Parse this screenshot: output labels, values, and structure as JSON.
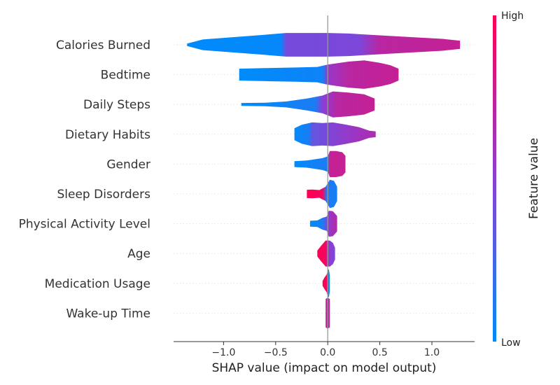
{
  "chart_data": {
    "type": "violin",
    "xlabel": "SHAP value (impact on model output)",
    "xlim": [
      -1.48,
      1.41
    ],
    "xticks": [
      -1.0,
      -0.5,
      0.0,
      0.5,
      1.0
    ],
    "xtick_labels": [
      "−1.0",
      "−0.5",
      "0.0",
      "0.5",
      "1.0"
    ],
    "grid": false,
    "colorbar": {
      "label": "Feature value",
      "high_label": "High",
      "low_label": "Low",
      "low_color": "#008bfb",
      "mid_color": "#8a3fd6",
      "high_color": "#ff0052"
    },
    "features": [
      {
        "name": "Calories Burned",
        "min": -1.35,
        "max": 1.27,
        "profile": [
          [
            -1.35,
            0.02
          ],
          [
            -1.2,
            0.09
          ],
          [
            -0.9,
            0.13
          ],
          [
            -0.6,
            0.17
          ],
          [
            -0.4,
            0.2
          ],
          [
            -0.2,
            0.2
          ],
          [
            0.0,
            0.2
          ],
          [
            0.2,
            0.19
          ],
          [
            0.5,
            0.16
          ],
          [
            0.8,
            0.13
          ],
          [
            1.1,
            0.1
          ],
          [
            1.27,
            0.07
          ]
        ],
        "color": [
          [
            -1.35,
            0.0
          ],
          [
            -0.45,
            0.02
          ],
          [
            -0.4,
            0.42
          ],
          [
            0.3,
            0.45
          ],
          [
            0.5,
            0.7
          ],
          [
            1.27,
            0.75
          ]
        ]
      },
      {
        "name": "Bedtime",
        "min": -0.85,
        "max": 0.68,
        "profile": [
          [
            -0.85,
            0.1
          ],
          [
            -0.6,
            0.11
          ],
          [
            -0.3,
            0.12
          ],
          [
            -0.1,
            0.13
          ],
          [
            0.0,
            0.17
          ],
          [
            0.2,
            0.22
          ],
          [
            0.35,
            0.24
          ],
          [
            0.5,
            0.2
          ],
          [
            0.6,
            0.16
          ],
          [
            0.68,
            0.1
          ]
        ],
        "color": [
          [
            -0.85,
            0.0
          ],
          [
            -0.05,
            0.05
          ],
          [
            0.0,
            0.55
          ],
          [
            0.2,
            0.7
          ],
          [
            0.68,
            0.75
          ]
        ]
      },
      {
        "name": "Daily Steps",
        "min": -0.83,
        "max": 0.45,
        "profile": [
          [
            -0.83,
            0.025
          ],
          [
            -0.6,
            0.03
          ],
          [
            -0.4,
            0.05
          ],
          [
            -0.2,
            0.1
          ],
          [
            -0.05,
            0.15
          ],
          [
            0.05,
            0.22
          ],
          [
            0.2,
            0.2
          ],
          [
            0.35,
            0.17
          ],
          [
            0.45,
            0.1
          ]
        ],
        "color": [
          [
            -0.83,
            0.0
          ],
          [
            -0.12,
            0.1
          ],
          [
            -0.05,
            0.5
          ],
          [
            0.1,
            0.7
          ],
          [
            0.45,
            0.75
          ]
        ]
      },
      {
        "name": "Dietary Habits",
        "min": -0.32,
        "max": 0.46,
        "profile": [
          [
            -0.32,
            0.1
          ],
          [
            -0.25,
            0.16
          ],
          [
            -0.15,
            0.2
          ],
          [
            -0.05,
            0.19
          ],
          [
            0.05,
            0.2
          ],
          [
            0.15,
            0.17
          ],
          [
            0.3,
            0.12
          ],
          [
            0.4,
            0.06
          ],
          [
            0.46,
            0.05
          ]
        ],
        "color": [
          [
            -0.32,
            0.0
          ],
          [
            -0.18,
            0.1
          ],
          [
            -0.15,
            0.35
          ],
          [
            0.0,
            0.45
          ],
          [
            0.2,
            0.55
          ],
          [
            0.46,
            0.65
          ]
        ]
      },
      {
        "name": "Gender",
        "min": -0.32,
        "max": 0.17,
        "profile": [
          [
            -0.32,
            0.05
          ],
          [
            -0.2,
            0.06
          ],
          [
            -0.05,
            0.1
          ],
          [
            0.0,
            0.13
          ],
          [
            0.02,
            0.22
          ],
          [
            0.08,
            0.22
          ],
          [
            0.14,
            0.2
          ],
          [
            0.17,
            0.14
          ]
        ],
        "color": [
          [
            -0.32,
            0.0
          ],
          [
            0.0,
            0.1
          ],
          [
            0.02,
            0.75
          ],
          [
            0.17,
            0.75
          ]
        ]
      },
      {
        "name": "Sleep Disorders",
        "min": -0.2,
        "max": 0.09,
        "profile": [
          [
            -0.2,
            0.07
          ],
          [
            -0.15,
            0.075
          ],
          [
            -0.08,
            0.065
          ],
          [
            -0.02,
            0.12
          ],
          [
            0.02,
            0.24
          ],
          [
            0.06,
            0.22
          ],
          [
            0.09,
            0.12
          ]
        ],
        "color": [
          [
            -0.2,
            1.0
          ],
          [
            -0.05,
            0.95
          ],
          [
            -0.01,
            0.12
          ],
          [
            0.09,
            0.08
          ]
        ]
      },
      {
        "name": "Physical Activity Level",
        "min": -0.17,
        "max": 0.09,
        "profile": [
          [
            -0.17,
            0.05
          ],
          [
            -0.1,
            0.055
          ],
          [
            -0.05,
            0.1
          ],
          [
            -0.01,
            0.12
          ],
          [
            0.01,
            0.22
          ],
          [
            0.05,
            0.21
          ],
          [
            0.09,
            0.13
          ]
        ],
        "color": [
          [
            -0.17,
            0.0
          ],
          [
            -0.05,
            0.08
          ],
          [
            0.0,
            0.5
          ],
          [
            0.05,
            0.62
          ],
          [
            0.09,
            0.65
          ]
        ]
      },
      {
        "name": "Age",
        "min": -0.1,
        "max": 0.07,
        "profile": [
          [
            -0.1,
            0.05
          ],
          [
            -0.06,
            0.14
          ],
          [
            -0.02,
            0.22
          ],
          [
            0.02,
            0.22
          ],
          [
            0.05,
            0.18
          ],
          [
            0.07,
            0.1
          ]
        ],
        "color": [
          [
            -0.1,
            1.0
          ],
          [
            -0.02,
            0.95
          ],
          [
            0.0,
            0.6
          ],
          [
            0.03,
            0.5
          ],
          [
            0.07,
            0.45
          ]
        ]
      },
      {
        "name": "Medication Usage",
        "min": -0.05,
        "max": 0.02,
        "profile": [
          [
            -0.05,
            0.04
          ],
          [
            -0.03,
            0.1
          ],
          [
            -0.01,
            0.15
          ],
          [
            0.0,
            0.22
          ],
          [
            0.01,
            0.24
          ],
          [
            0.02,
            0.14
          ]
        ],
        "color": [
          [
            -0.05,
            1.0
          ],
          [
            -0.01,
            0.95
          ],
          [
            0.0,
            0.1
          ],
          [
            0.02,
            0.05
          ]
        ]
      },
      {
        "name": "Wake-up Time",
        "min": -0.02,
        "max": 0.02,
        "profile": [
          [
            -0.02,
            0.24
          ],
          [
            0.0,
            0.26
          ],
          [
            0.02,
            0.24
          ]
        ],
        "color": [
          [
            -0.02,
            0.72
          ],
          [
            0.02,
            0.74
          ]
        ]
      }
    ]
  }
}
